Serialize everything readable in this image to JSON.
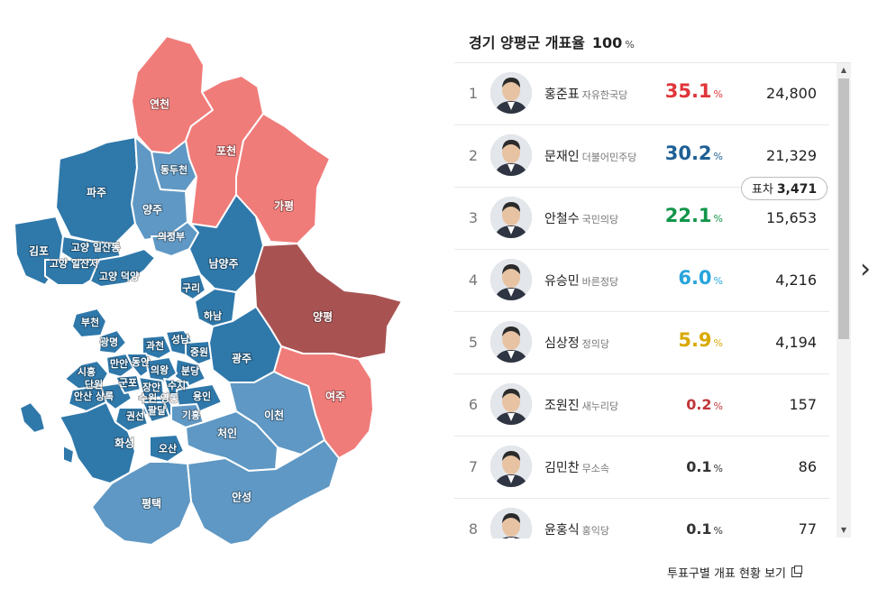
{
  "header": {
    "title": "경기 양평군 개표율",
    "rate": "100",
    "rate_unit": "%"
  },
  "colors": {
    "red_party": "#f07c7a",
    "blue_party": "#2f78aa",
    "blue_light": "#5f98c4",
    "selected": "#a85352"
  },
  "map": {
    "regions": [
      {
        "name": "연천",
        "color": "red"
      },
      {
        "name": "포천",
        "color": "red"
      },
      {
        "name": "가평",
        "color": "red"
      },
      {
        "name": "동두천",
        "color": "blue_light"
      },
      {
        "name": "양주",
        "color": "blue_light"
      },
      {
        "name": "파주",
        "color": "blue"
      },
      {
        "name": "의정부",
        "color": "blue_light"
      },
      {
        "name": "남양주",
        "color": "blue"
      },
      {
        "name": "김포",
        "color": "blue"
      },
      {
        "name": "고양 일산동",
        "color": "blue"
      },
      {
        "name": "고양 일산서",
        "color": "blue"
      },
      {
        "name": "고양 덕양",
        "color": "blue"
      },
      {
        "name": "구리",
        "color": "blue"
      },
      {
        "name": "하남",
        "color": "blue"
      },
      {
        "name": "양평",
        "color": "selected"
      },
      {
        "name": "부천",
        "color": "blue"
      },
      {
        "name": "광명",
        "color": "blue"
      },
      {
        "name": "과천",
        "color": "blue"
      },
      {
        "name": "성남",
        "color": "blue"
      },
      {
        "name": "중원",
        "color": "blue"
      },
      {
        "name": "분당",
        "color": "blue"
      },
      {
        "name": "광주",
        "color": "blue"
      },
      {
        "name": "여주",
        "color": "red"
      },
      {
        "name": "시흥",
        "color": "blue"
      },
      {
        "name": "만안",
        "color": "blue"
      },
      {
        "name": "동안",
        "color": "blue"
      },
      {
        "name": "의왕",
        "color": "blue"
      },
      {
        "name": "안산 상록",
        "color": "blue"
      },
      {
        "name": "단원",
        "color": "blue"
      },
      {
        "name": "군포",
        "color": "blue"
      },
      {
        "name": "장안",
        "color": "blue"
      },
      {
        "name": "수지",
        "color": "blue"
      },
      {
        "name": "수원 영통",
        "color": "blue"
      },
      {
        "name": "용인",
        "color": "blue"
      },
      {
        "name": "권선",
        "color": "blue"
      },
      {
        "name": "팔달",
        "color": "blue"
      },
      {
        "name": "기흥",
        "color": "blue_light"
      },
      {
        "name": "이천",
        "color": "blue_light"
      },
      {
        "name": "화성",
        "color": "blue"
      },
      {
        "name": "오산",
        "color": "blue"
      },
      {
        "name": "처인",
        "color": "blue_light"
      },
      {
        "name": "안성",
        "color": "blue_light"
      },
      {
        "name": "평택",
        "color": "blue_light"
      }
    ]
  },
  "margin_badge": {
    "label": "표차",
    "value": "3,471"
  },
  "candidates": [
    {
      "rank": "1",
      "name": "홍준표",
      "party": "자유한국당",
      "share": "35.1",
      "votes": "24,800",
      "color": "#e0353a"
    },
    {
      "rank": "2",
      "name": "문재인",
      "party": "더불어민주당",
      "share": "30.2",
      "votes": "21,329",
      "color": "#1e5f95"
    },
    {
      "rank": "3",
      "name": "안철수",
      "party": "국민의당",
      "share": "22.1",
      "votes": "15,653",
      "color": "#11954a"
    },
    {
      "rank": "4",
      "name": "유승민",
      "party": "바른정당",
      "share": "6.0",
      "votes": "4,216",
      "color": "#27a4dc"
    },
    {
      "rank": "5",
      "name": "심상정",
      "party": "정의당",
      "share": "5.9",
      "votes": "4,194",
      "color": "#d9a900"
    },
    {
      "rank": "6",
      "name": "조원진",
      "party": "새누리당",
      "share": "0.2",
      "votes": "157",
      "color": "#c0363a"
    },
    {
      "rank": "7",
      "name": "김민찬",
      "party": "무소속",
      "share": "0.1",
      "votes": "86",
      "color": "#333333"
    },
    {
      "rank": "8",
      "name": "윤홍식",
      "party": "홍익당",
      "share": "0.1",
      "votes": "77",
      "color": "#333333"
    }
  ],
  "pct_unit": "%",
  "footer": {
    "precinct_link": "투표구별 개표 현황 보기"
  },
  "icons": {
    "next": "chevron-right-icon",
    "external": "external-link-icon",
    "scroll_up": "scroll-up-icon",
    "scroll_down": "scroll-down-icon"
  }
}
